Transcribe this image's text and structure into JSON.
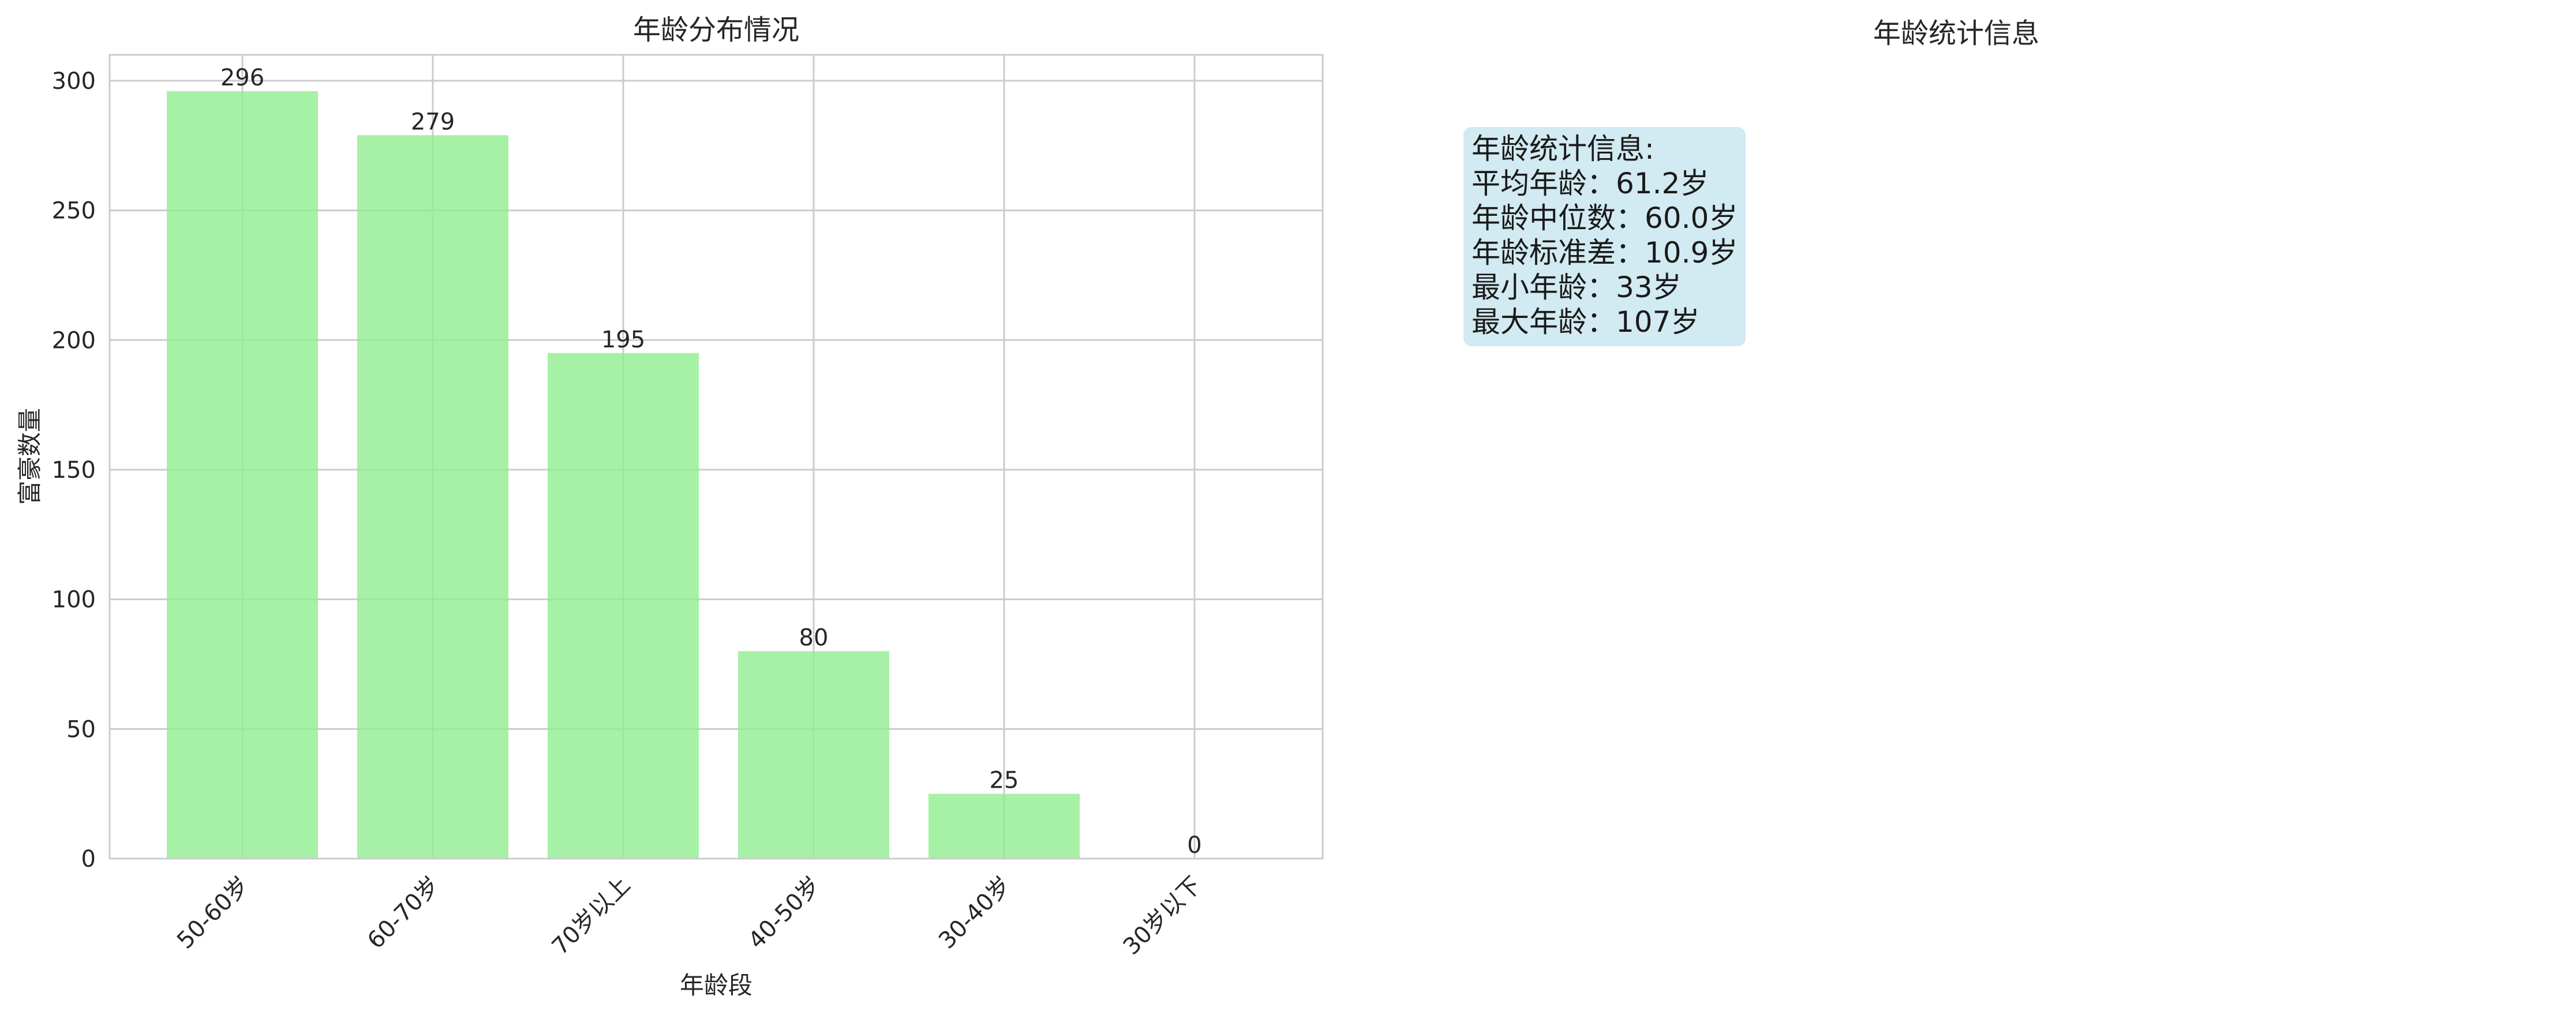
{
  "chart_data": [
    {
      "type": "bar",
      "title": "年龄分布情况",
      "xlabel": "年龄段",
      "ylabel": "富豪数量",
      "categories": [
        "50-60岁",
        "60-70岁",
        "70岁以上",
        "40-50岁",
        "30-40岁",
        "30岁以下"
      ],
      "values": [
        296,
        279,
        195,
        80,
        25,
        0
      ],
      "ylim": [
        0,
        310
      ],
      "yticks": [
        0,
        50,
        100,
        150,
        200,
        250,
        300
      ],
      "grid": true,
      "bar_color": "#90ee90"
    },
    {
      "type": "table",
      "title": "年龄统计信息",
      "lines": [
        "年龄统计信息:",
        "平均年龄：61.2岁",
        "年龄中位数：60.0岁",
        "年龄标准差：10.9岁",
        "最小年龄：33岁",
        "最大年龄：107岁"
      ],
      "box_color": "#add8e6"
    }
  ]
}
